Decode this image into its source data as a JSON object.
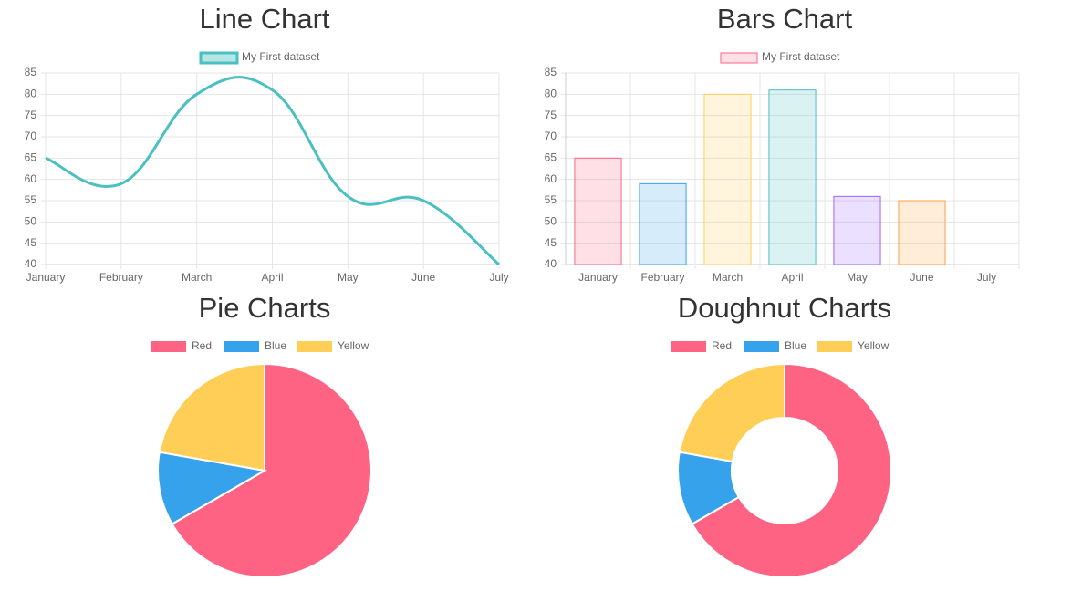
{
  "chart_data": [
    {
      "type": "line",
      "title": "Line Chart",
      "categories": [
        "January",
        "February",
        "March",
        "April",
        "May",
        "June",
        "July"
      ],
      "series": [
        {
          "name": "My First dataset",
          "color": "#4bc0c0",
          "values": [
            65,
            59,
            80,
            81,
            56,
            55,
            40
          ]
        }
      ],
      "ylim": [
        40,
        85
      ],
      "yticks": [
        40,
        45,
        50,
        55,
        60,
        65,
        70,
        75,
        80,
        85
      ],
      "grid": true
    },
    {
      "type": "bar",
      "title": "Bars Chart",
      "categories": [
        "January",
        "February",
        "March",
        "April",
        "May",
        "June",
        "July"
      ],
      "series": [
        {
          "name": "My First dataset",
          "colors": [
            "#ff6384",
            "#36a2eb",
            "#ffce56",
            "#4bc0c0",
            "#9966ff",
            "#ff9f40",
            "#c9cbcf"
          ],
          "values": [
            65,
            59,
            80,
            81,
            56,
            55,
            40
          ]
        }
      ],
      "ylim": [
        40,
        85
      ],
      "yticks": [
        40,
        45,
        50,
        55,
        60,
        65,
        70,
        75,
        80,
        85
      ],
      "grid": true
    },
    {
      "type": "pie",
      "title": "Pie Charts",
      "categories": [
        "Red",
        "Blue",
        "Yellow"
      ],
      "values": [
        300,
        50,
        100
      ],
      "colors": [
        "#ff6384",
        "#36a2eb",
        "#ffce56"
      ]
    },
    {
      "type": "doughnut",
      "title": "Doughnut Charts",
      "categories": [
        "Red",
        "Blue",
        "Yellow"
      ],
      "values": [
        300,
        50,
        100
      ],
      "colors": [
        "#ff6384",
        "#36a2eb",
        "#ffce56"
      ]
    }
  ]
}
